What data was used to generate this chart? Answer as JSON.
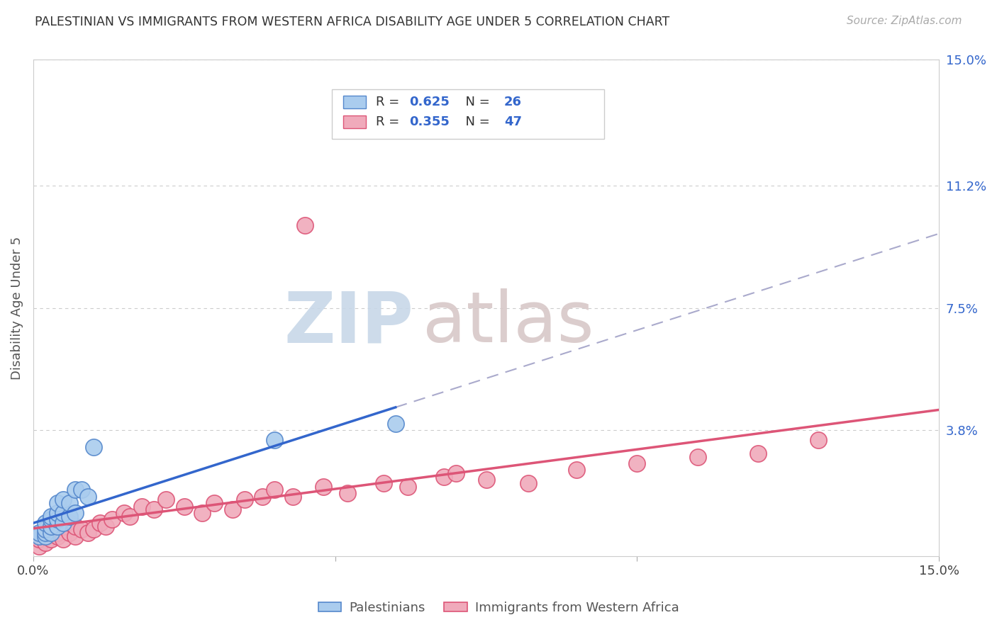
{
  "title": "PALESTINIAN VS IMMIGRANTS FROM WESTERN AFRICA DISABILITY AGE UNDER 5 CORRELATION CHART",
  "source": "Source: ZipAtlas.com",
  "ylabel": "Disability Age Under 5",
  "xlim": [
    0,
    0.15
  ],
  "ylim": [
    0,
    0.15
  ],
  "yticks_right": [
    0.0,
    0.038,
    0.075,
    0.112,
    0.15
  ],
  "yticks_right_labels": [
    "",
    "3.8%",
    "7.5%",
    "11.2%",
    "15.0%"
  ],
  "grid_color": "#cccccc",
  "background_color": "#ffffff",
  "palestinians": {
    "x": [
      0.001,
      0.001,
      0.002,
      0.002,
      0.002,
      0.002,
      0.003,
      0.003,
      0.003,
      0.003,
      0.004,
      0.004,
      0.004,
      0.004,
      0.005,
      0.005,
      0.005,
      0.006,
      0.006,
      0.007,
      0.007,
      0.008,
      0.009,
      0.01,
      0.04,
      0.06
    ],
    "y": [
      0.006,
      0.007,
      0.006,
      0.007,
      0.008,
      0.01,
      0.007,
      0.009,
      0.011,
      0.012,
      0.009,
      0.011,
      0.013,
      0.016,
      0.01,
      0.013,
      0.017,
      0.012,
      0.016,
      0.013,
      0.02,
      0.02,
      0.018,
      0.033,
      0.035,
      0.04
    ],
    "color": "#aaccee",
    "edge_color": "#5588cc",
    "R": 0.625,
    "N": 26
  },
  "western_africa": {
    "x": [
      0.001,
      0.001,
      0.002,
      0.002,
      0.003,
      0.003,
      0.004,
      0.004,
      0.005,
      0.005,
      0.006,
      0.006,
      0.007,
      0.007,
      0.008,
      0.009,
      0.01,
      0.011,
      0.012,
      0.013,
      0.015,
      0.016,
      0.018,
      0.02,
      0.022,
      0.025,
      0.028,
      0.03,
      0.033,
      0.035,
      0.038,
      0.04,
      0.043,
      0.048,
      0.052,
      0.058,
      0.062,
      0.068,
      0.075,
      0.082,
      0.09,
      0.1,
      0.11,
      0.12,
      0.13,
      0.045,
      0.07
    ],
    "y": [
      0.003,
      0.005,
      0.004,
      0.006,
      0.005,
      0.008,
      0.006,
      0.007,
      0.005,
      0.009,
      0.007,
      0.01,
      0.006,
      0.009,
      0.008,
      0.007,
      0.008,
      0.01,
      0.009,
      0.011,
      0.013,
      0.012,
      0.015,
      0.014,
      0.017,
      0.015,
      0.013,
      0.016,
      0.014,
      0.017,
      0.018,
      0.02,
      0.018,
      0.021,
      0.019,
      0.022,
      0.021,
      0.024,
      0.023,
      0.022,
      0.026,
      0.028,
      0.03,
      0.031,
      0.035,
      0.1,
      0.025
    ],
    "color": "#f0aabb",
    "edge_color": "#dd5577",
    "R": 0.355,
    "N": 47
  },
  "legend_label_palestinians": "Palestinians",
  "legend_label_western_africa": "Immigrants from Western Africa",
  "blue_line_color": "#3366cc",
  "pink_line_color": "#dd5577",
  "dashed_line_color": "#aaaacc",
  "watermark_zip_color": "#c8d8e8",
  "watermark_atlas_color": "#d8c8c8",
  "legend_R_color": "#3366cc",
  "legend_N_color": "#3366cc"
}
